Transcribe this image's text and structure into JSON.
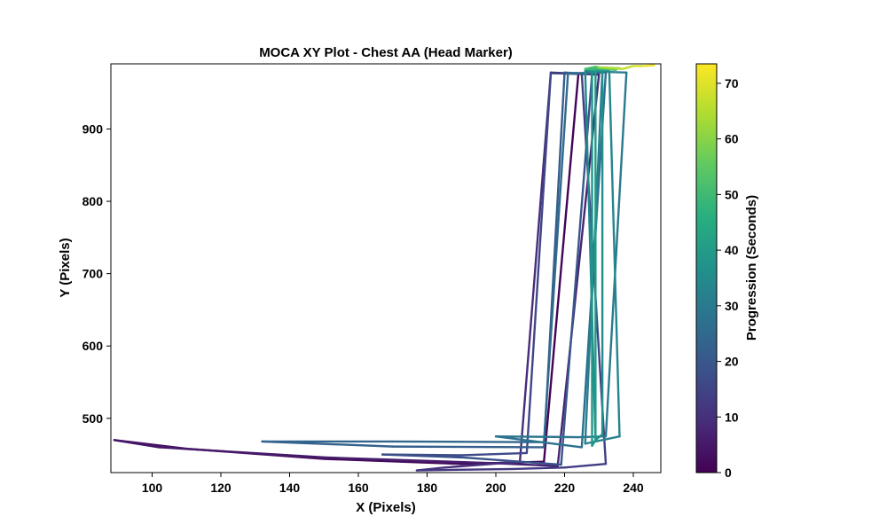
{
  "chart_data": {
    "type": "line",
    "title": "MOCA XY Plot - Chest AA (Head Marker)",
    "xlabel": "X (Pixels)",
    "ylabel": "Y (Pixels)",
    "xlim": [
      88,
      248
    ],
    "ylim": [
      425,
      990
    ],
    "xticks": [
      100,
      120,
      140,
      160,
      180,
      200,
      220,
      240
    ],
    "yticks": [
      500,
      600,
      700,
      800,
      900
    ],
    "grid": false,
    "colorbar": {
      "label": "Progression (Seconds)",
      "range": [
        0,
        73.5
      ],
      "ticks": [
        0,
        10,
        20,
        30,
        40,
        50,
        60,
        70
      ],
      "colormap": "viridis"
    },
    "series": [
      {
        "color_value_range": [
          0,
          73.5
        ],
        "points": [
          [
            224,
            975,
            0
          ],
          [
            214,
            440,
            0.8
          ],
          [
            190,
            437,
            1.6
          ],
          [
            150,
            444,
            2.4
          ],
          [
            110,
            458,
            3.2
          ],
          [
            89,
            470,
            4.0
          ],
          [
            102,
            460,
            4.8
          ],
          [
            150,
            446,
            5.6
          ],
          [
            200,
            438,
            6.4
          ],
          [
            218,
            434,
            7.2
          ],
          [
            230,
            975,
            8.0
          ],
          [
            216,
            978,
            8.8
          ],
          [
            207,
            440,
            9.6
          ],
          [
            185,
            432,
            10.4
          ],
          [
            177,
            428,
            11.2
          ],
          [
            205,
            430,
            12.0
          ],
          [
            220,
            432,
            12.8
          ],
          [
            232,
            437,
            13.6
          ],
          [
            225,
            976,
            14.4
          ],
          [
            216,
            977,
            15.2
          ],
          [
            209,
            452,
            16.0
          ],
          [
            190,
            449,
            16.8
          ],
          [
            167,
            450,
            17.6
          ],
          [
            190,
            446,
            18.4
          ],
          [
            219,
            436,
            19.2
          ],
          [
            228,
            976,
            20.0
          ],
          [
            220,
            978,
            20.8
          ],
          [
            214,
            460,
            21.6
          ],
          [
            170,
            461,
            22.4
          ],
          [
            132,
            468,
            23.2
          ],
          [
            170,
            468,
            24.0
          ],
          [
            214,
            467,
            24.8
          ],
          [
            221,
            977,
            25.6
          ],
          [
            232,
            978,
            26.4
          ],
          [
            225,
            460,
            27.2
          ],
          [
            200,
            475,
            28.0
          ],
          [
            224,
            474,
            28.8
          ],
          [
            232,
            475,
            29.6
          ],
          [
            238,
            978,
            30.4
          ],
          [
            231,
            979,
            31.2
          ],
          [
            226,
            465,
            32.0
          ],
          [
            236,
            475,
            32.8
          ],
          [
            233,
            980,
            33.6
          ],
          [
            226,
            980,
            34.4
          ],
          [
            229,
            470,
            35.2
          ],
          [
            231,
            478,
            36.0
          ],
          [
            231,
            980,
            36.8
          ],
          [
            228,
            982,
            37.6
          ],
          [
            228,
            462,
            38.4
          ],
          [
            229,
            470,
            39.2
          ],
          [
            229,
            981,
            40.0
          ],
          [
            226,
            983,
            41.6
          ],
          [
            230,
            983,
            44.0
          ],
          [
            235,
            982,
            47.0
          ],
          [
            226,
            983,
            50.0
          ],
          [
            229,
            986,
            53.0
          ],
          [
            233,
            983,
            56.0
          ],
          [
            236,
            984,
            59.0
          ],
          [
            230,
            985,
            62.0
          ],
          [
            234,
            984,
            64.0
          ],
          [
            237,
            983,
            66.0
          ],
          [
            240,
            987,
            68.0
          ],
          [
            243,
            987,
            70.0
          ],
          [
            246,
            988,
            73.5
          ]
        ]
      }
    ]
  }
}
